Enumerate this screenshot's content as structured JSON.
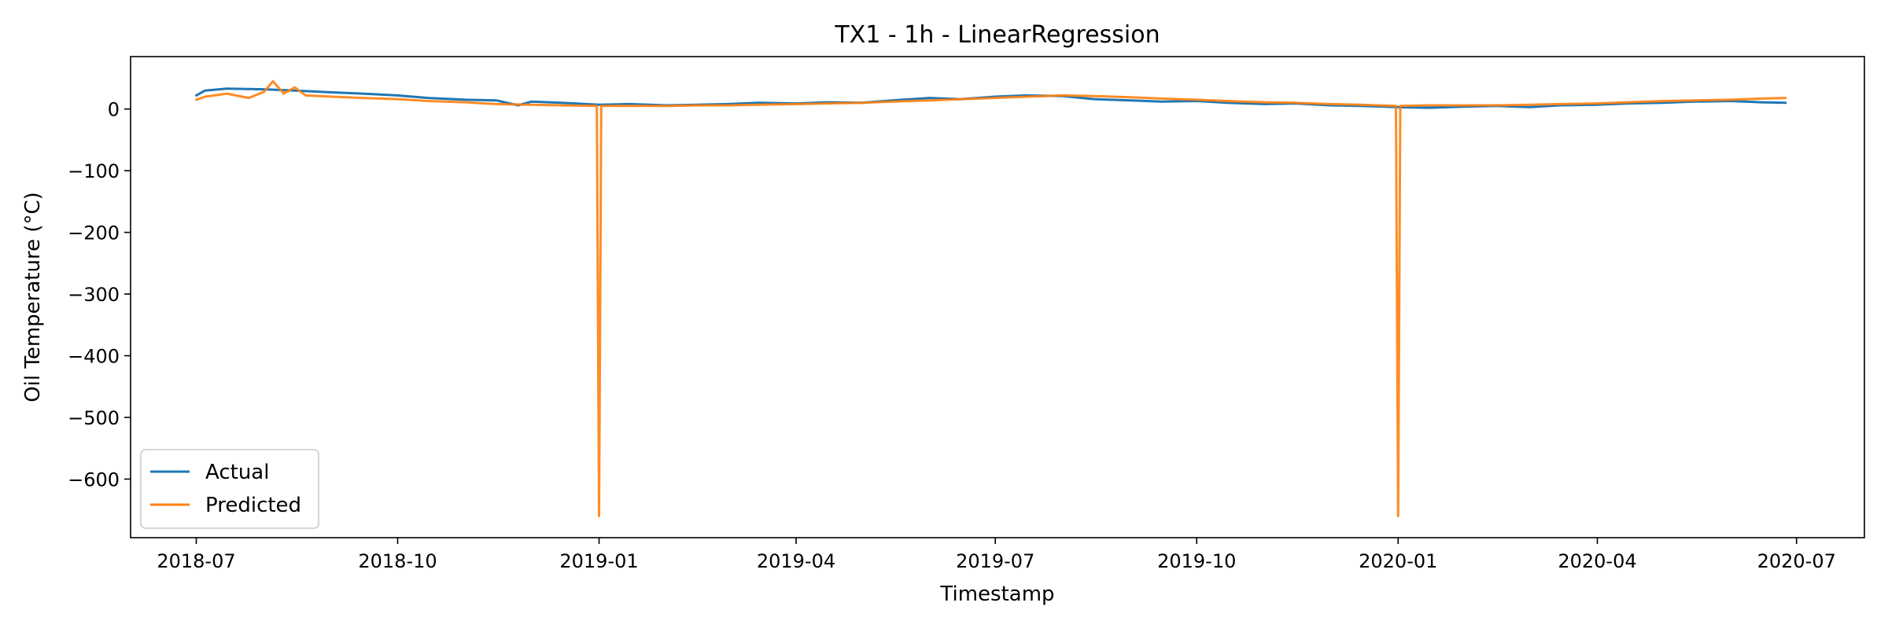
{
  "chart_data": {
    "type": "line",
    "title": "TX1 - 1h - LinearRegression",
    "xlabel": "Timestamp",
    "ylabel": "Oil Temperature (°C)",
    "x_type": "date",
    "xlim": [
      "2018-06-01",
      "2020-08-01"
    ],
    "ylim": [
      -695,
      85
    ],
    "x_ticks": [
      "2018-07-01",
      "2018-10-01",
      "2019-01-01",
      "2019-04-01",
      "2019-07-01",
      "2019-10-01",
      "2020-01-01",
      "2020-04-01",
      "2020-07-01"
    ],
    "x_tick_labels": [
      "2018-07",
      "2018-10",
      "2019-01",
      "2019-04",
      "2019-07",
      "2019-10",
      "2020-01",
      "2020-04",
      "2020-07"
    ],
    "y_ticks": [
      0,
      -100,
      -200,
      -300,
      -400,
      -500,
      -600
    ],
    "y_tick_labels": [
      "0",
      "−100",
      "−200",
      "−300",
      "−400",
      "−500",
      "−600"
    ],
    "grid": false,
    "legend_position": "lower-left",
    "series": [
      {
        "name": "Actual",
        "color": "#1f77b4",
        "x": [
          "2018-07-01",
          "2018-07-05",
          "2018-07-15",
          "2018-08-01",
          "2018-08-15",
          "2018-09-01",
          "2018-09-15",
          "2018-10-01",
          "2018-10-15",
          "2018-11-01",
          "2018-11-15",
          "2018-11-25",
          "2018-12-01",
          "2018-12-15",
          "2019-01-01",
          "2019-01-15",
          "2019-02-01",
          "2019-02-15",
          "2019-03-01",
          "2019-03-15",
          "2019-04-01",
          "2019-04-15",
          "2019-05-01",
          "2019-05-15",
          "2019-06-01",
          "2019-06-15",
          "2019-07-01",
          "2019-07-15",
          "2019-08-01",
          "2019-08-15",
          "2019-09-01",
          "2019-09-15",
          "2019-10-01",
          "2019-10-15",
          "2019-11-01",
          "2019-11-15",
          "2019-12-01",
          "2019-12-15",
          "2020-01-01",
          "2020-01-15",
          "2020-02-01",
          "2020-02-15",
          "2020-03-01",
          "2020-03-15",
          "2020-04-01",
          "2020-04-15",
          "2020-05-01",
          "2020-05-15",
          "2020-06-01",
          "2020-06-15",
          "2020-06-26"
        ],
        "y": [
          22,
          30,
          33,
          32,
          30,
          27,
          25,
          22,
          18,
          15,
          14,
          6,
          12,
          10,
          7,
          8,
          6,
          7,
          8,
          10,
          9,
          11,
          10,
          14,
          18,
          16,
          20,
          22,
          21,
          16,
          14,
          12,
          13,
          10,
          8,
          9,
          6,
          5,
          3,
          2,
          4,
          5,
          3,
          6,
          7,
          9,
          10,
          12,
          13,
          11,
          10
        ]
      },
      {
        "name": "Predicted",
        "color": "#ff7f0e",
        "x": [
          "2018-07-01",
          "2018-07-05",
          "2018-07-15",
          "2018-07-25",
          "2018-08-01",
          "2018-08-05",
          "2018-08-10",
          "2018-08-15",
          "2018-08-20",
          "2018-09-01",
          "2018-09-15",
          "2018-10-01",
          "2018-10-15",
          "2018-11-01",
          "2018-11-15",
          "2018-12-01",
          "2018-12-15",
          "2018-12-31",
          "2019-01-01",
          "2019-01-02",
          "2019-01-15",
          "2019-02-01",
          "2019-02-15",
          "2019-03-01",
          "2019-03-15",
          "2019-04-01",
          "2019-04-15",
          "2019-05-01",
          "2019-05-15",
          "2019-06-01",
          "2019-06-15",
          "2019-07-01",
          "2019-07-15",
          "2019-08-01",
          "2019-08-15",
          "2019-09-01",
          "2019-09-15",
          "2019-10-01",
          "2019-10-15",
          "2019-11-01",
          "2019-11-15",
          "2019-12-01",
          "2019-12-15",
          "2019-12-31",
          "2020-01-01",
          "2020-01-02",
          "2020-01-15",
          "2020-02-01",
          "2020-02-15",
          "2020-03-01",
          "2020-03-15",
          "2020-04-01",
          "2020-04-15",
          "2020-05-01",
          "2020-05-15",
          "2020-06-01",
          "2020-06-15",
          "2020-06-26"
        ],
        "y": [
          15,
          20,
          25,
          18,
          28,
          45,
          25,
          35,
          22,
          20,
          18,
          16,
          13,
          11,
          8,
          7,
          6,
          5,
          -660,
          5,
          5,
          5,
          6,
          6,
          7,
          8,
          9,
          10,
          12,
          14,
          16,
          18,
          20,
          22,
          21,
          19,
          17,
          15,
          13,
          11,
          10,
          8,
          7,
          5,
          -660,
          5,
          6,
          6,
          6,
          7,
          8,
          9,
          11,
          13,
          14,
          15,
          17,
          18
        ]
      }
    ]
  }
}
